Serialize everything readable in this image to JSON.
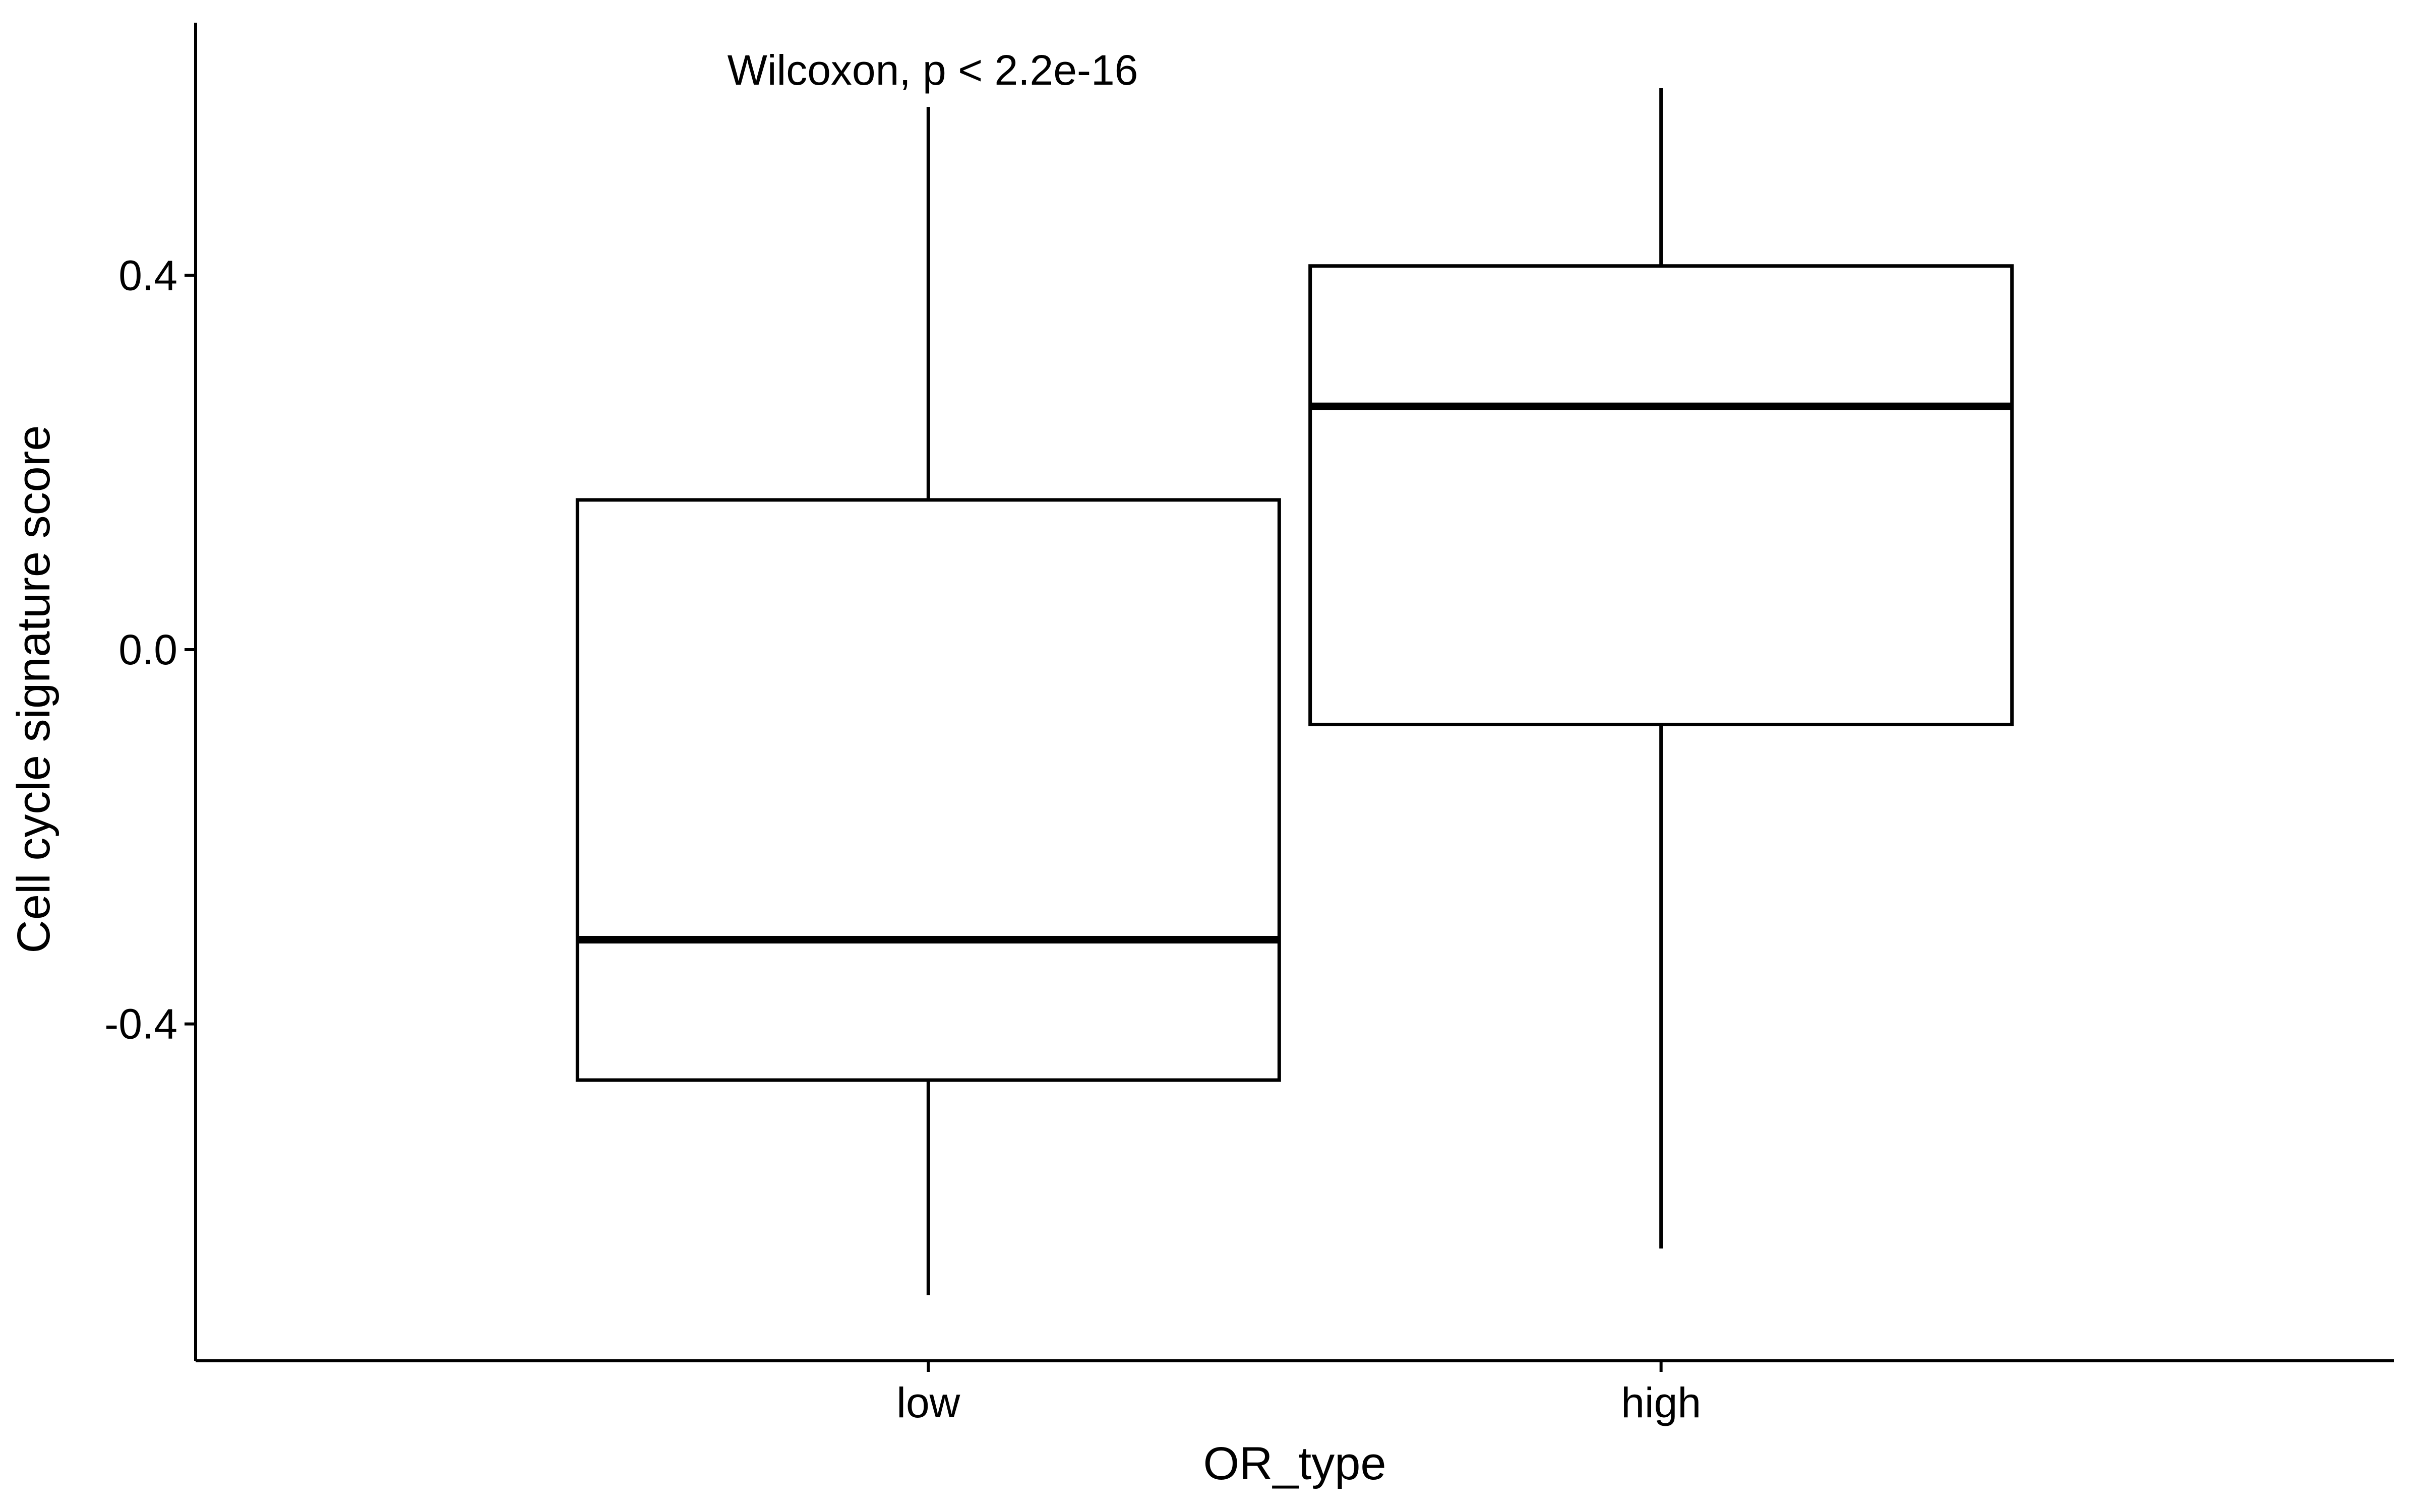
{
  "chart_data": {
    "type": "boxplot",
    "title": "",
    "xlabel": "OR_type",
    "ylabel": "Cell cycle signature score",
    "ylim": [
      -0.76,
      0.67
    ],
    "y_ticks": [
      {
        "value": -0.4,
        "label": "-0.4"
      },
      {
        "value": 0.0,
        "label": "0.0"
      },
      {
        "value": 0.4,
        "label": "0.4"
      }
    ],
    "categories": [
      "low",
      "high"
    ],
    "boxes": [
      {
        "category": "low",
        "whisker_low": -0.69,
        "q1": -0.46,
        "median": -0.31,
        "q3": 0.16,
        "whisker_high": 0.58
      },
      {
        "category": "high",
        "whisker_low": -0.64,
        "q1": -0.08,
        "median": 0.26,
        "q3": 0.41,
        "whisker_high": 0.6
      }
    ],
    "annotation": "Wilcoxon, p < 2.2e-16",
    "grid": false,
    "legend": "none"
  },
  "colors": {
    "line": "#000000",
    "box_fill": "#ffffff",
    "background": "#ffffff"
  }
}
